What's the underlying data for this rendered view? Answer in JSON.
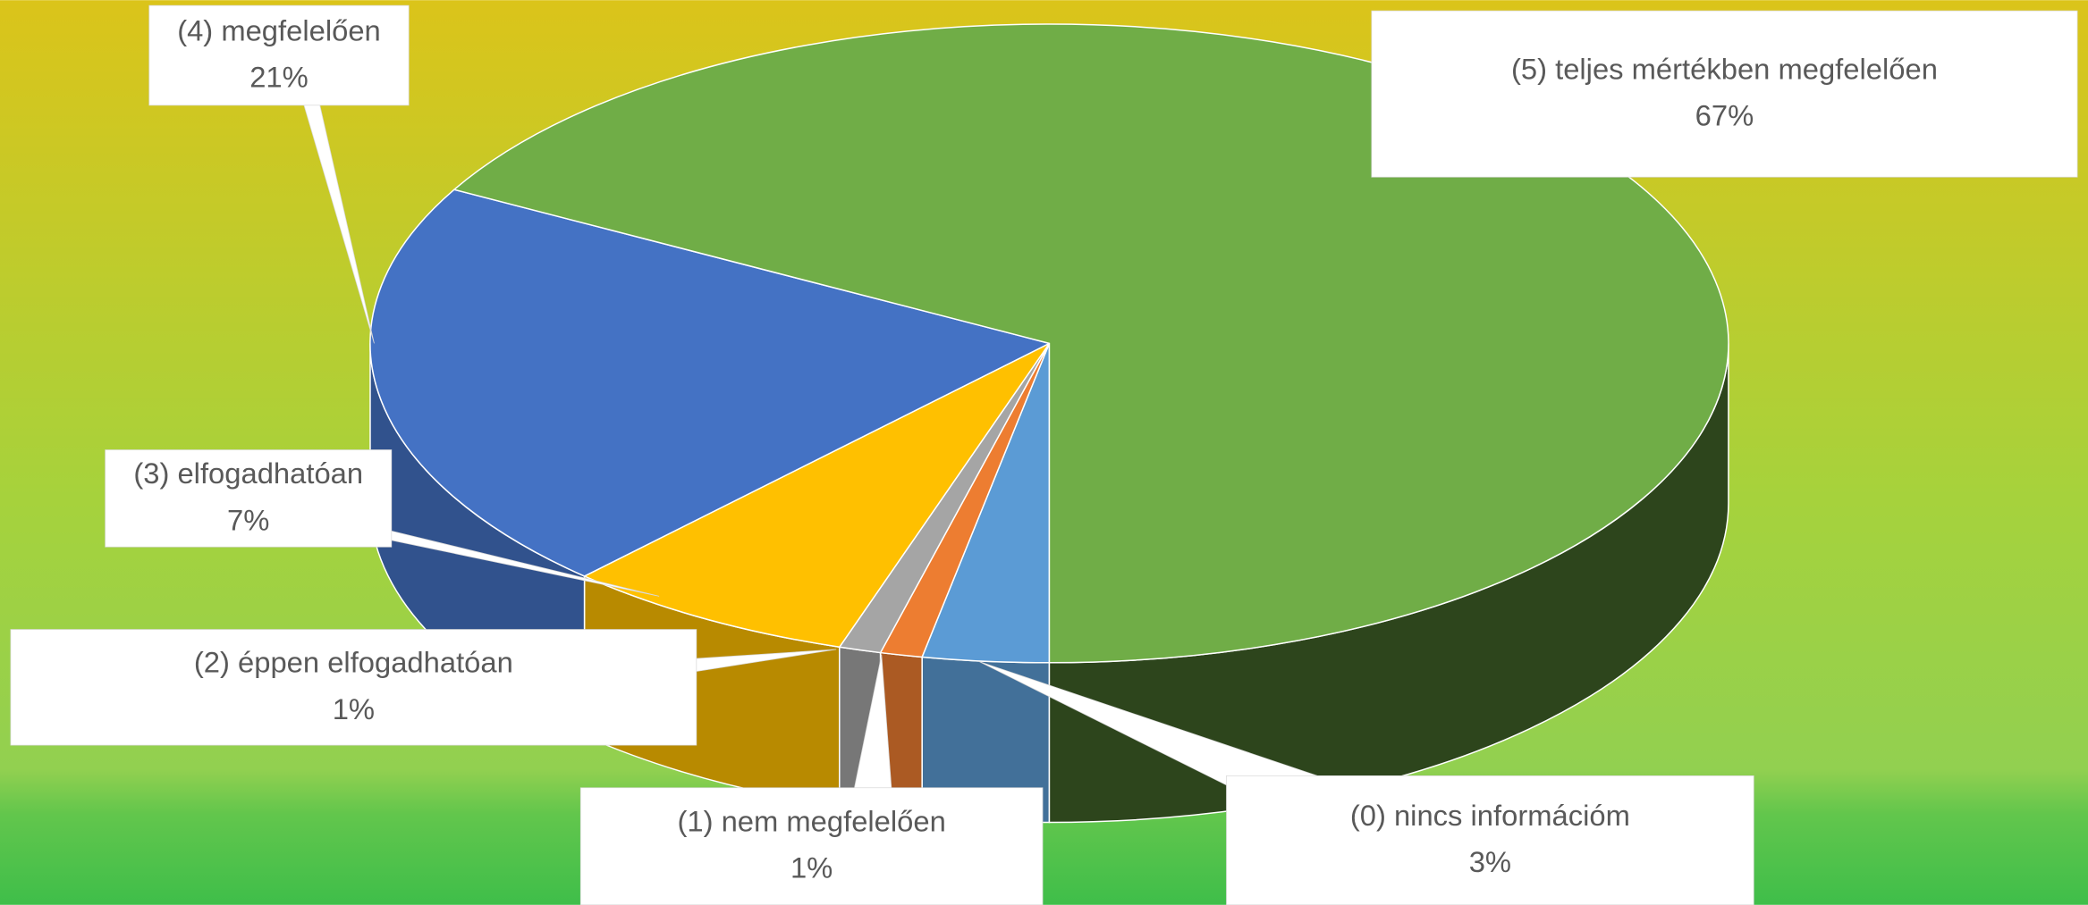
{
  "chart_data": {
    "type": "pie",
    "categories": [
      "(0) nincs információm",
      "(1) nem megfelelően",
      "(2) éppen elfogadhatóan",
      "(3) elfogadhatóan",
      "(4) megfelelően",
      "(5) teljes mértékben megfelelően"
    ],
    "values": [
      3,
      1,
      1,
      7,
      21,
      67
    ],
    "value_labels": [
      "3%",
      "1%",
      "1%",
      "7%",
      "21%",
      "67%"
    ],
    "colors": [
      "#5b9bd5",
      "#ed7d31",
      "#a5a5a5",
      "#ffc000",
      "#4472c4",
      "#70ad47"
    ]
  }
}
